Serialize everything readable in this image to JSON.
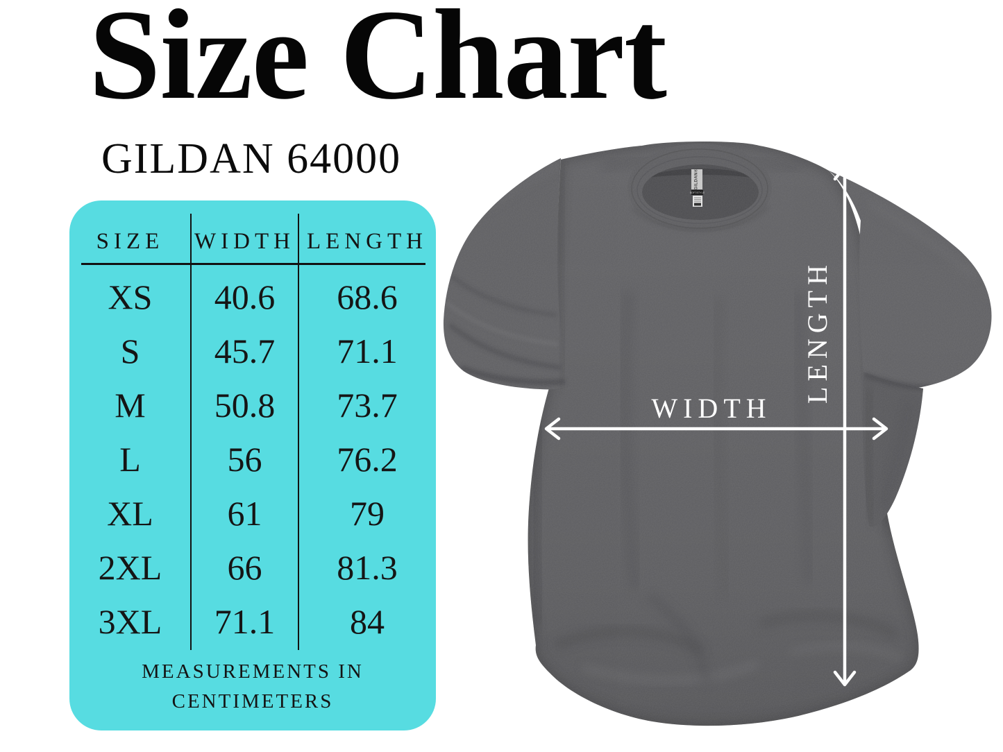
{
  "header": {
    "title": "Size Chart",
    "subtitle": "GILDAN 64000"
  },
  "chart_data": {
    "type": "table",
    "title": "Size Chart",
    "subtitle": "GILDAN 64000",
    "columns": [
      "SIZE",
      "WIDTH",
      "LENGTH"
    ],
    "rows": [
      [
        "XS",
        "40.6",
        "68.6"
      ],
      [
        "S",
        "45.7",
        "71.1"
      ],
      [
        "M",
        "50.8",
        "73.7"
      ],
      [
        "L",
        "56",
        "76.2"
      ],
      [
        "XL",
        "61",
        "79"
      ],
      [
        "2XL",
        "66",
        "81.3"
      ],
      [
        "3XL",
        "71.1",
        "84"
      ]
    ],
    "units": "centimeters",
    "note": "MEASUREMENTS IN CENTIMETERS"
  },
  "table": {
    "panel_color": "#57dce1",
    "footer_line1": "MEASUREMENTS IN",
    "footer_line2": "CENTIMETERS"
  },
  "diagram": {
    "width_label": "WIDTH",
    "length_label": "LENGTH",
    "tag_brand": "GILDAN®",
    "tag_style": "SOFTSTYLE",
    "shirt_color": "#626265",
    "arrow_color": "#ffffff"
  }
}
